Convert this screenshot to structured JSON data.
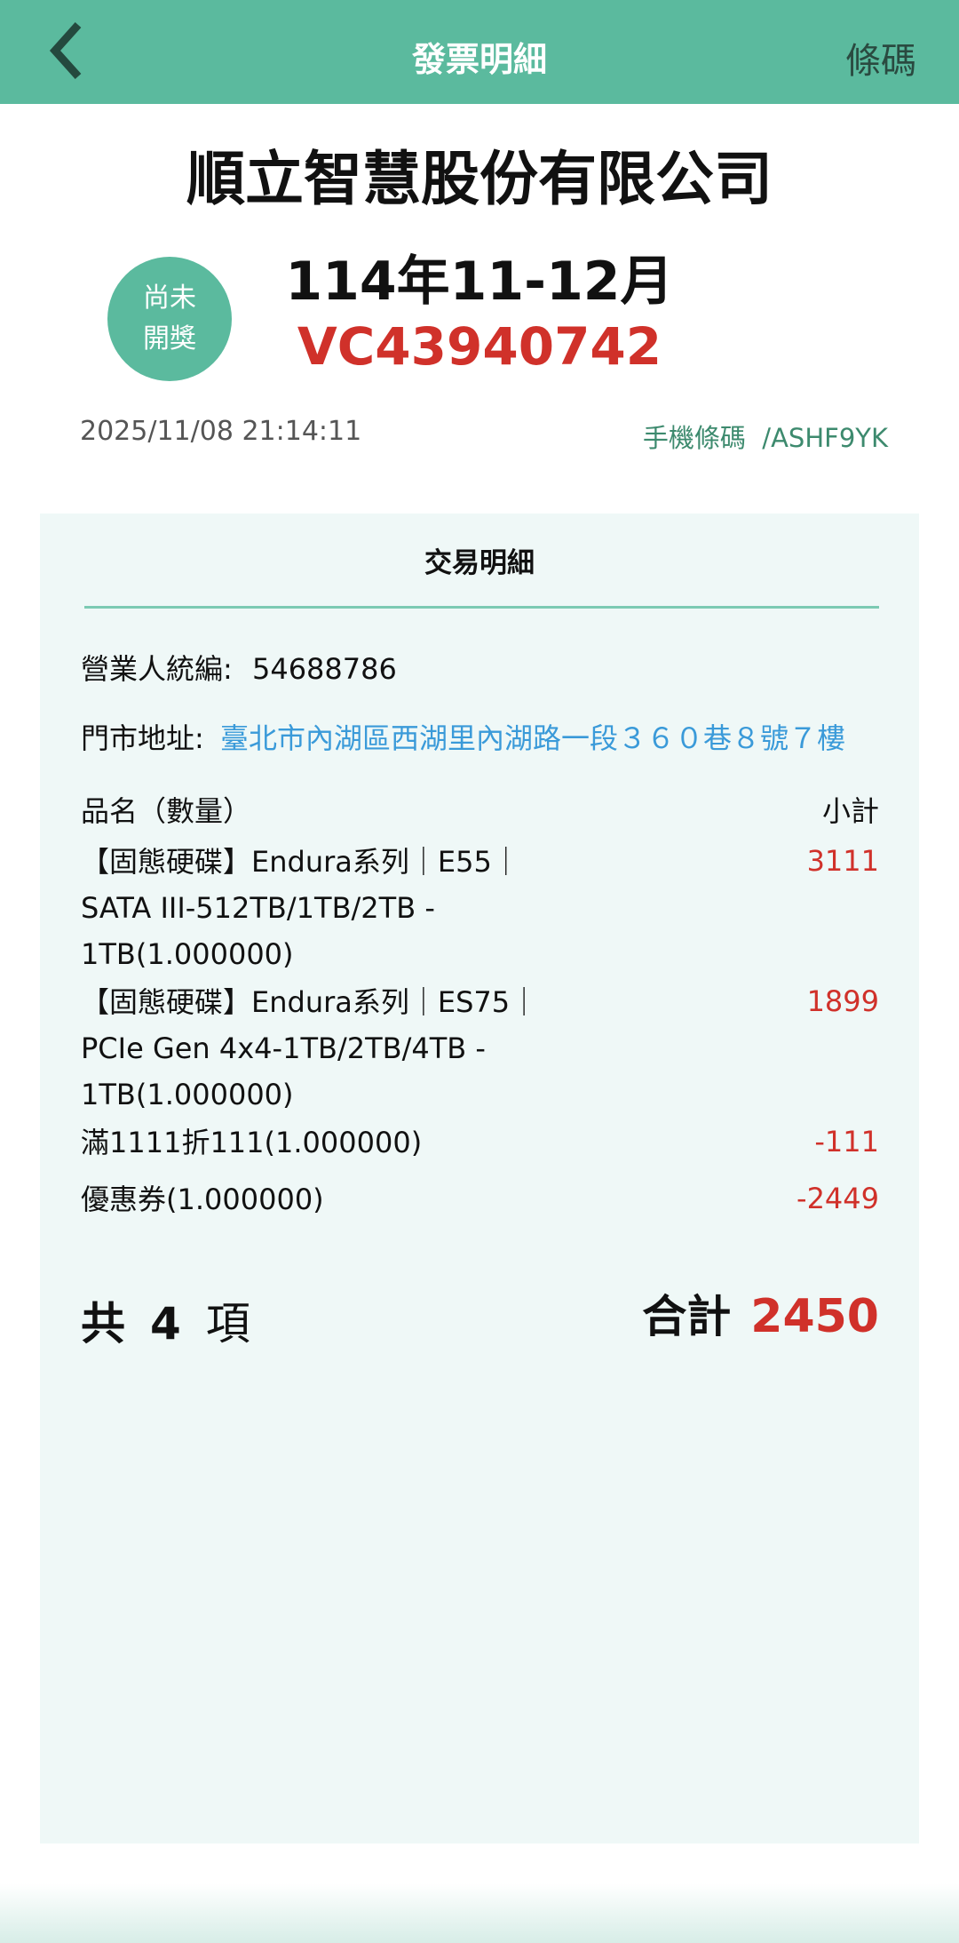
{
  "header": {
    "title": "發票明細",
    "barcode_label": "條碼",
    "back_icon": "chevron-left-icon"
  },
  "invoice": {
    "company": "順立智慧股份有限公司",
    "status_line1": "尚未",
    "status_line2": "開獎",
    "period": "114年11-12月",
    "number": "VC43940742",
    "datetime": "2025/11/08 21:14:11",
    "carrier": "手機條碼  /ASHF9YK"
  },
  "detail": {
    "title": "交易明細",
    "tax_id_label": "營業人統編:",
    "tax_id": "54688786",
    "address_label": "門市地址:",
    "address": "臺北市內湖區西湖里內湖路一段３６０巷８號７樓",
    "col_name": "品名（數量）",
    "col_subtotal": "小計",
    "items": [
      {
        "name": "【固態硬碟】Endura系列｜E55｜SATA III-512TB/1TB/2TB - 1TB(1.000000)",
        "amount": "3111"
      },
      {
        "name": "【固態硬碟】Endura系列｜ES75｜PCIe Gen 4x4-1TB/2TB/4TB - 1TB(1.000000)",
        "amount": "1899"
      },
      {
        "name": "滿1111折111(1.000000)",
        "amount": "-111"
      },
      {
        "name": "優惠券(1.000000)",
        "amount": "-2449"
      }
    ],
    "count_prefix": "共",
    "count": "4",
    "count_suffix": "項",
    "total_label": "合計",
    "total": "2450"
  },
  "colors": {
    "accent": "#5bba9e",
    "red": "#d0312a",
    "link": "#3a9ad9"
  }
}
